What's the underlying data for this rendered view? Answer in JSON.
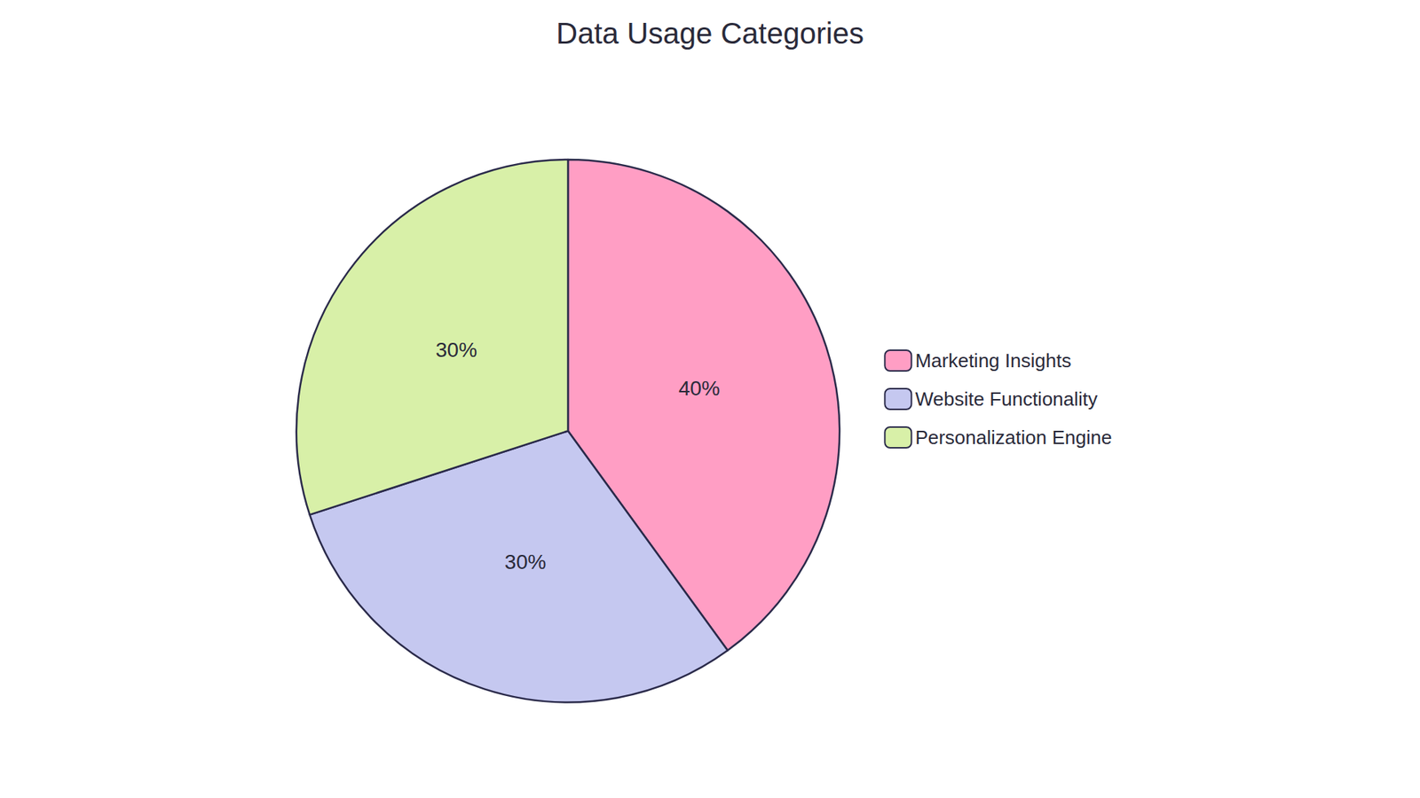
{
  "chart_data": {
    "type": "pie",
    "title": "Data Usage Categories",
    "categories": [
      "Marketing Insights",
      "Website Functionality",
      "Personalization Engine"
    ],
    "values": [
      40,
      30,
      30
    ],
    "value_labels": [
      "40%",
      "30%",
      "30%"
    ],
    "colors": [
      "#FF9EC4",
      "#C5C8F0",
      "#D8F0A8"
    ],
    "data_labels": true,
    "legend": "right"
  }
}
